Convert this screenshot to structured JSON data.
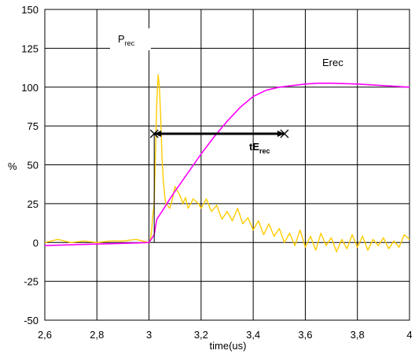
{
  "chart_data": {
    "type": "line",
    "title": "",
    "xlabel": "time(us)",
    "ylabel": "%",
    "xlim": [
      2.6,
      4.0
    ],
    "ylim": [
      -50,
      150
    ],
    "x_ticks": [
      "2,6",
      "2,8",
      "3",
      "3,2",
      "3,4",
      "3,6",
      "3,8",
      "4"
    ],
    "y_ticks": [
      "-50",
      "-25",
      "0",
      "25",
      "50",
      "75",
      "100",
      "125",
      "150"
    ],
    "grid": true,
    "annotations": {
      "prec_main": "P",
      "prec_sub": "rec",
      "erec": "Erec",
      "te_main": "tE",
      "te_sub": "rec",
      "te_range": {
        "x_start": 3.02,
        "x_end": 3.52,
        "y": 70
      }
    },
    "series": [
      {
        "color": "#ff00ff",
        "x": [
          2.6,
          3.0,
          3.02,
          3.03,
          3.05,
          3.08,
          3.1,
          3.15,
          3.2,
          3.25,
          3.3,
          3.35,
          3.4,
          3.45,
          3.5,
          3.55,
          3.6,
          3.65,
          3.7,
          3.8,
          3.9,
          4.0
        ],
        "y": [
          -2,
          0,
          5,
          15,
          20,
          28,
          33,
          45,
          57,
          68,
          78,
          87,
          94,
          98,
          100,
          101,
          102,
          102.5,
          102.5,
          102,
          101,
          100
        ]
      },
      {
        "color": "#ffcc00",
        "x": [
          2.6,
          2.65,
          2.7,
          2.75,
          2.8,
          2.85,
          2.9,
          2.95,
          3.0,
          3.005,
          3.01,
          3.015,
          3.02,
          3.025,
          3.03,
          3.035,
          3.04,
          3.045,
          3.05,
          3.055,
          3.06,
          3.065,
          3.07,
          3.08,
          3.09,
          3.1,
          3.11,
          3.12,
          3.13,
          3.14,
          3.15,
          3.17,
          3.19,
          3.2,
          3.22,
          3.24,
          3.26,
          3.28,
          3.3,
          3.32,
          3.34,
          3.36,
          3.38,
          3.4,
          3.42,
          3.44,
          3.46,
          3.48,
          3.5,
          3.52,
          3.54,
          3.56,
          3.58,
          3.6,
          3.62,
          3.64,
          3.66,
          3.68,
          3.7,
          3.72,
          3.74,
          3.76,
          3.78,
          3.8,
          3.82,
          3.84,
          3.86,
          3.88,
          3.9,
          3.92,
          3.94,
          3.96,
          3.98,
          4.0
        ],
        "y": [
          0,
          2,
          0,
          1,
          0,
          1,
          1,
          2,
          0,
          1,
          8,
          18,
          25,
          60,
          90,
          108,
          100,
          80,
          55,
          40,
          30,
          25,
          24,
          22,
          28,
          36,
          33,
          30,
          25,
          29,
          22,
          28,
          25,
          22,
          28,
          20,
          24,
          15,
          20,
          14,
          22,
          12,
          16,
          8,
          14,
          5,
          12,
          4,
          9,
          0,
          6,
          -2,
          8,
          -3,
          4,
          -5,
          6,
          -2,
          3,
          -6,
          2,
          -4,
          5,
          -3,
          4,
          -5,
          2,
          -2,
          3,
          -4,
          1,
          -3,
          5,
          2
        ]
      }
    ]
  }
}
